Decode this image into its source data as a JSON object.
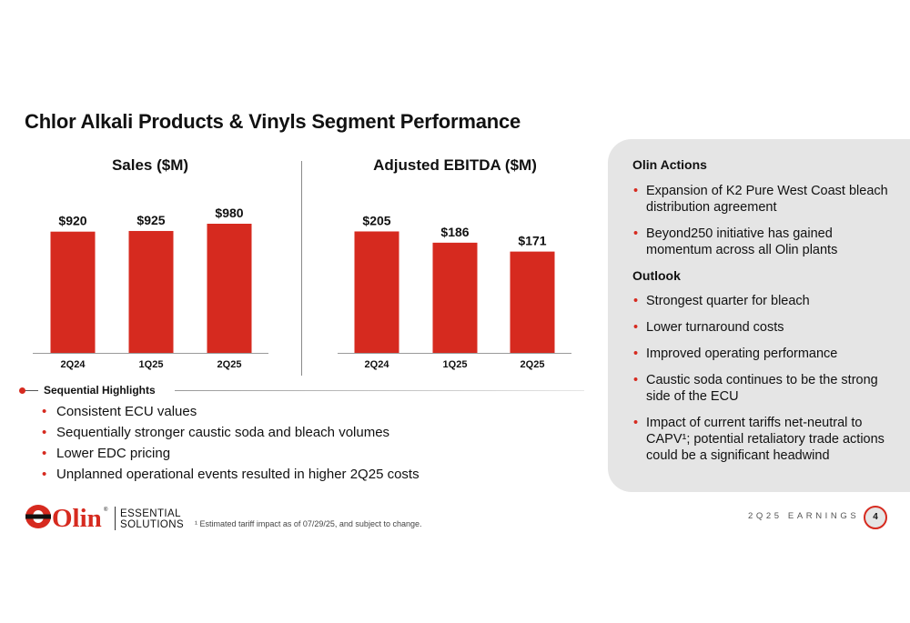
{
  "slide": {
    "title": "Chlor Alkali Products & Vinyls Segment Performance",
    "page_number": "4",
    "footer_label": "2Q25 EARNINGS",
    "footnote": "¹ Estimated tariff impact as of 07/29/25, and subject to change."
  },
  "logo": {
    "brand": "Olin",
    "line1": "ESSENTIAL",
    "line2": "SOLUTIONS",
    "registered_mark": "®"
  },
  "colors": {
    "bar": "#d62a1f",
    "accent": "#d62a1f",
    "panel": "#e5e5e5"
  },
  "chart_data": [
    {
      "type": "bar",
      "title": "Sales ($M)",
      "categories": [
        "2Q24",
        "1Q25",
        "2Q25"
      ],
      "values": [
        920,
        925,
        980
      ],
      "labels": [
        "$920",
        "$925",
        "$980"
      ],
      "ylim": [
        0,
        980
      ],
      "grid": false
    },
    {
      "type": "bar",
      "title": "Adjusted EBITDA ($M)",
      "categories": [
        "2Q24",
        "1Q25",
        "2Q25"
      ],
      "values": [
        205,
        186,
        171
      ],
      "labels": [
        "$205",
        "$186",
        "$171"
      ],
      "ylim": [
        0,
        218
      ],
      "grid": false
    }
  ],
  "highlights": {
    "title": "Sequential Highlights",
    "items": [
      "Consistent ECU values",
      "Sequentially stronger caustic soda and bleach volumes",
      "Lower EDC pricing",
      "Unplanned operational events resulted in higher 2Q25 costs"
    ]
  },
  "panel": {
    "actions_title": "Olin Actions",
    "actions": [
      "Expansion of K2 Pure West Coast bleach distribution agreement",
      "Beyond250 initiative has gained momentum across all Olin plants"
    ],
    "outlook_title": "Outlook",
    "outlook": [
      "Strongest quarter for bleach",
      "Lower turnaround costs",
      "Improved operating performance",
      "Caustic soda continues to be the strong side of the ECU",
      "Impact of current tariffs net-neutral to CAPV¹; potential retaliatory trade actions could be a significant headwind"
    ]
  }
}
